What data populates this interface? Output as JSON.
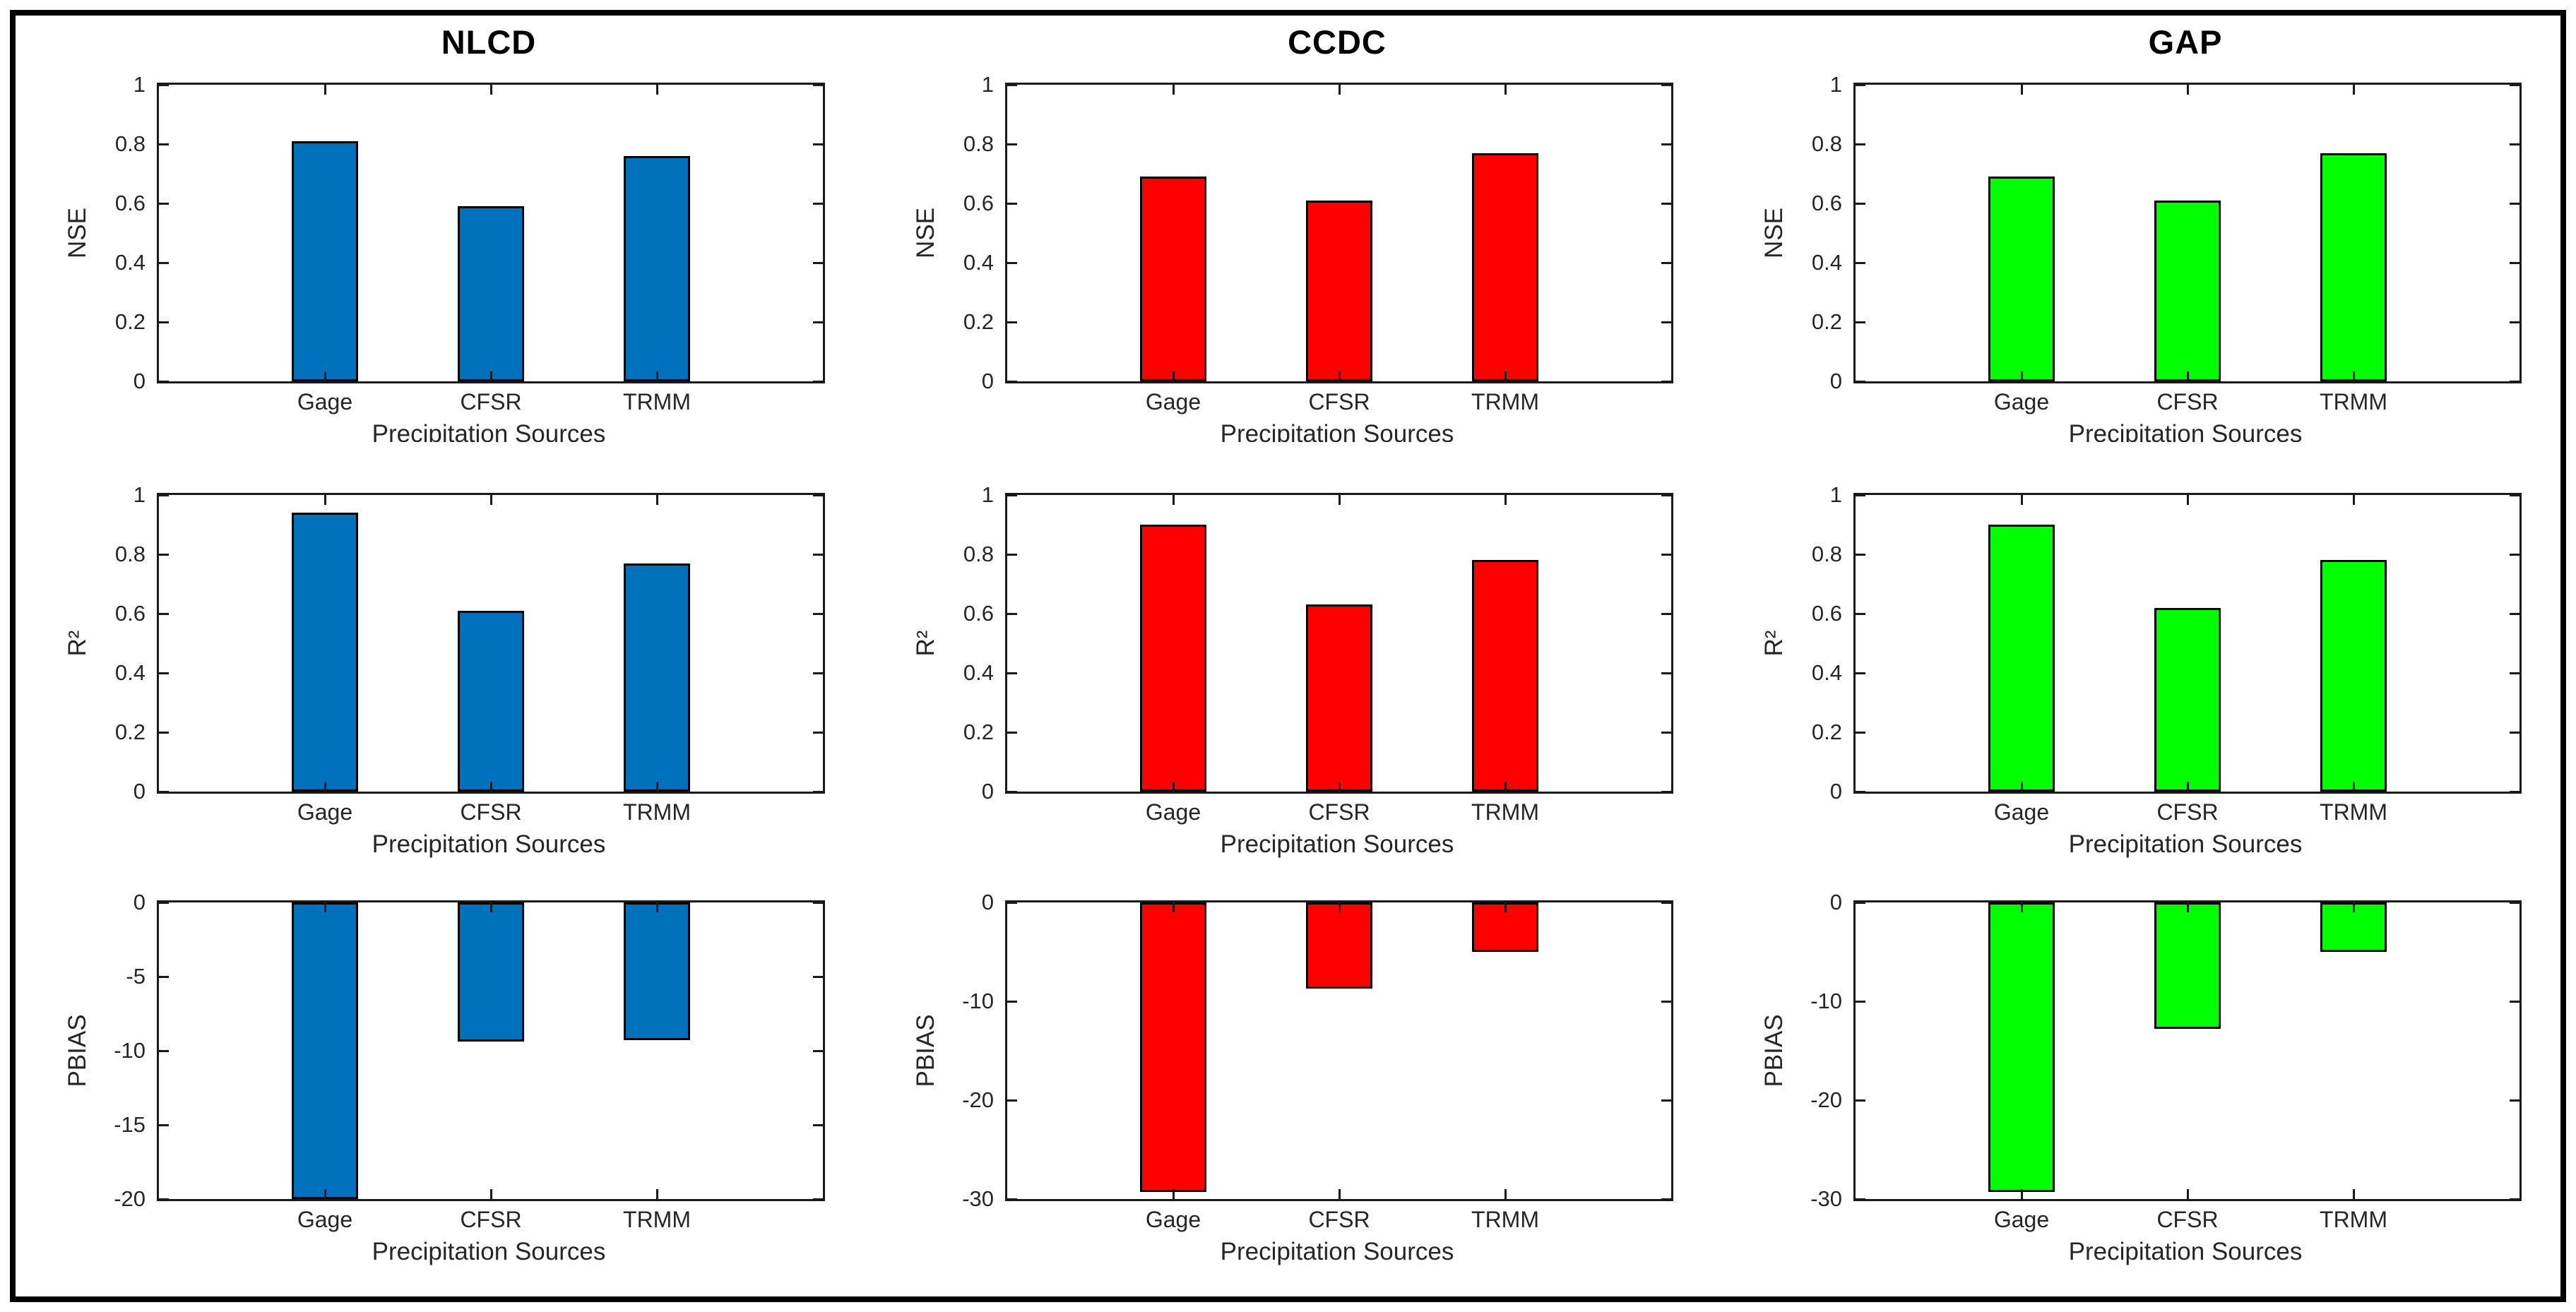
{
  "figure": {
    "background": "#ffffff",
    "frame_border_color": "#000000",
    "column_titles": [
      "NLCD",
      "CCDC",
      "GAP"
    ],
    "row_metrics": [
      "NSE",
      "R²",
      "PBIAS"
    ],
    "accent_colors": {
      "nlcd_blue": "#0072BD",
      "ccdc_red": "#FF0000",
      "gap_green": "#00FF00"
    }
  },
  "chart_data": [
    {
      "id": "nlcd-nse",
      "type": "bar",
      "title": "NLCD",
      "ylabel": "NSE",
      "xlabel": "Precipitation Sources",
      "categories": [
        "Gage",
        "CFSR",
        "TRMM"
      ],
      "values": [
        0.81,
        0.59,
        0.76
      ],
      "ylim": [
        0,
        1
      ],
      "yticks": [
        1,
        0.8,
        0.6,
        0.4,
        0.2,
        0
      ],
      "bar_color": "#0072BD",
      "row": 1,
      "grid": false,
      "legend": "none"
    },
    {
      "id": "ccdc-nse",
      "type": "bar",
      "title": "CCDC",
      "ylabel": "NSE",
      "xlabel": "Precipitation Sources",
      "categories": [
        "Gage",
        "CFSR",
        "TRMM"
      ],
      "values": [
        0.69,
        0.61,
        0.77
      ],
      "ylim": [
        0,
        1
      ],
      "yticks": [
        1,
        0.8,
        0.6,
        0.4,
        0.2,
        0
      ],
      "bar_color": "#FF0000",
      "row": 1,
      "grid": false,
      "legend": "none"
    },
    {
      "id": "gap-nse",
      "type": "bar",
      "title": "GAP",
      "ylabel": "NSE",
      "xlabel": "Precipitation Sources",
      "categories": [
        "Gage",
        "CFSR",
        "TRMM"
      ],
      "values": [
        0.69,
        0.61,
        0.77
      ],
      "ylim": [
        0,
        1
      ],
      "yticks": [
        1,
        0.8,
        0.6,
        0.4,
        0.2,
        0
      ],
      "bar_color": "#00FF00",
      "row": 1,
      "grid": false,
      "legend": "none"
    },
    {
      "id": "nlcd-r2",
      "type": "bar",
      "title": "",
      "ylabel": "R²",
      "xlabel": "Precipitation Sources",
      "categories": [
        "Gage",
        "CFSR",
        "TRMM"
      ],
      "values": [
        0.94,
        0.61,
        0.77
      ],
      "ylim": [
        0,
        1
      ],
      "yticks": [
        1,
        0.8,
        0.6,
        0.4,
        0.2,
        0
      ],
      "bar_color": "#0072BD",
      "row": 2,
      "grid": false,
      "legend": "none"
    },
    {
      "id": "ccdc-r2",
      "type": "bar",
      "title": "",
      "ylabel": "R²",
      "xlabel": "Precipitation Sources",
      "categories": [
        "Gage",
        "CFSR",
        "TRMM"
      ],
      "values": [
        0.9,
        0.63,
        0.78
      ],
      "ylim": [
        0,
        1
      ],
      "yticks": [
        1,
        0.8,
        0.6,
        0.4,
        0.2,
        0
      ],
      "bar_color": "#FF0000",
      "row": 2,
      "grid": false,
      "legend": "none"
    },
    {
      "id": "gap-r2",
      "type": "bar",
      "title": "",
      "ylabel": "R²",
      "xlabel": "Precipitation Sources",
      "categories": [
        "Gage",
        "CFSR",
        "TRMM"
      ],
      "values": [
        0.9,
        0.62,
        0.78
      ],
      "ylim": [
        0,
        1
      ],
      "yticks": [
        1,
        0.8,
        0.6,
        0.4,
        0.2,
        0
      ],
      "bar_color": "#00FF00",
      "row": 2,
      "grid": false,
      "legend": "none"
    },
    {
      "id": "nlcd-pbias",
      "type": "bar",
      "title": "",
      "ylabel": "PBIAS",
      "xlabel": "Precipitation Sources",
      "categories": [
        "Gage",
        "CFSR",
        "TRMM"
      ],
      "values": [
        -20,
        -9.4,
        -9.3
      ],
      "ylim": [
        -20,
        0
      ],
      "yticks": [
        0,
        -5,
        -10,
        -15,
        -20
      ],
      "bar_color": "#0072BD",
      "row": 3,
      "grid": false,
      "legend": "none"
    },
    {
      "id": "ccdc-pbias",
      "type": "bar",
      "title": "",
      "ylabel": "PBIAS",
      "xlabel": "Precipitation Sources",
      "categories": [
        "Gage",
        "CFSR",
        "TRMM"
      ],
      "values": [
        -29.3,
        -8.7,
        -5
      ],
      "ylim": [
        -30,
        0
      ],
      "yticks": [
        0,
        -10,
        -20,
        -30
      ],
      "bar_color": "#FF0000",
      "row": 3,
      "grid": false,
      "legend": "none"
    },
    {
      "id": "gap-pbias",
      "type": "bar",
      "title": "",
      "ylabel": "PBIAS",
      "xlabel": "Precipitation Sources",
      "categories": [
        "Gage",
        "CFSR",
        "TRMM"
      ],
      "values": [
        -29.3,
        -12.8,
        -5
      ],
      "ylim": [
        -30,
        0
      ],
      "yticks": [
        0,
        -10,
        -20,
        -30
      ],
      "bar_color": "#00FF00",
      "row": 3,
      "grid": false,
      "legend": "none"
    }
  ]
}
